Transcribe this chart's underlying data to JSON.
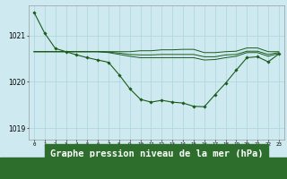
{
  "title": "Graphe pression niveau de la mer (hPa)",
  "bg_color": "#ceeaf0",
  "grid_color": "#aad4dc",
  "line_color": "#1a5c1a",
  "xlim": [
    -0.5,
    23.5
  ],
  "ylim": [
    1018.75,
    1021.65
  ],
  "yticks": [
    1019,
    1020,
    1021
  ],
  "xtick_labels": [
    "0",
    "1",
    "2",
    "3",
    "4",
    "5",
    "6",
    "7",
    "8",
    "9",
    "10",
    "11",
    "12",
    "13",
    "14",
    "15",
    "16",
    "17",
    "18",
    "19",
    "20",
    "21",
    "22",
    "23"
  ],
  "series1_x": [
    0,
    1,
    2,
    3,
    4,
    5,
    6,
    7,
    8,
    9,
    10,
    11,
    12,
    13,
    14,
    15,
    16,
    17,
    18,
    19,
    20,
    21,
    22,
    23
  ],
  "series1": [
    1021.5,
    1021.05,
    1020.72,
    1020.65,
    1020.58,
    1020.52,
    1020.47,
    1020.42,
    1020.15,
    1019.85,
    1019.62,
    1019.56,
    1019.6,
    1019.56,
    1019.54,
    1019.47,
    1019.46,
    1019.72,
    1019.97,
    1020.25,
    1020.52,
    1020.54,
    1020.43,
    1020.6
  ],
  "series2": [
    1020.65,
    1020.65,
    1020.65,
    1020.65,
    1020.65,
    1020.65,
    1020.65,
    1020.65,
    1020.65,
    1020.65,
    1020.67,
    1020.67,
    1020.69,
    1020.69,
    1020.7,
    1020.7,
    1020.63,
    1020.63,
    1020.65,
    1020.66,
    1020.73,
    1020.73,
    1020.65,
    1020.65
  ],
  "series3": [
    1020.65,
    1020.65,
    1020.65,
    1020.65,
    1020.65,
    1020.65,
    1020.65,
    1020.64,
    1020.62,
    1020.59,
    1020.58,
    1020.58,
    1020.59,
    1020.59,
    1020.59,
    1020.59,
    1020.54,
    1020.54,
    1020.58,
    1020.59,
    1020.66,
    1020.66,
    1020.59,
    1020.63
  ],
  "series4": [
    1020.65,
    1020.65,
    1020.65,
    1020.65,
    1020.65,
    1020.65,
    1020.65,
    1020.63,
    1020.59,
    1020.55,
    1020.52,
    1020.52,
    1020.52,
    1020.52,
    1020.52,
    1020.52,
    1020.47,
    1020.48,
    1020.52,
    1020.55,
    1020.63,
    1020.63,
    1020.55,
    1020.61
  ],
  "xlabel_bg": "#2d6e2d",
  "xlabel_color": "#ffffff",
  "xlabel_fontsize": 7.5
}
